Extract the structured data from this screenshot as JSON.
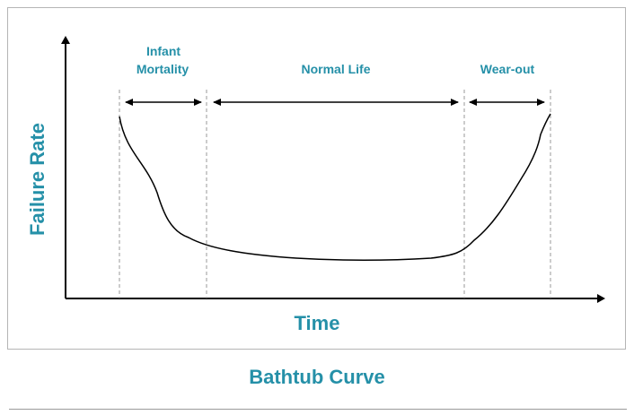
{
  "diagram": {
    "title": "Bathtub Curve",
    "axes": {
      "x_label": "Time",
      "y_label": "Failure Rate"
    },
    "phases": [
      {
        "line1": "Infant",
        "line2": "Mortality"
      },
      {
        "line1": "Normal Life"
      },
      {
        "line1": "Wear-out"
      }
    ],
    "colors": {
      "accent": "#2590a8",
      "line": "#000000",
      "guide": "#999999",
      "frame": "#b5b5b5"
    }
  }
}
